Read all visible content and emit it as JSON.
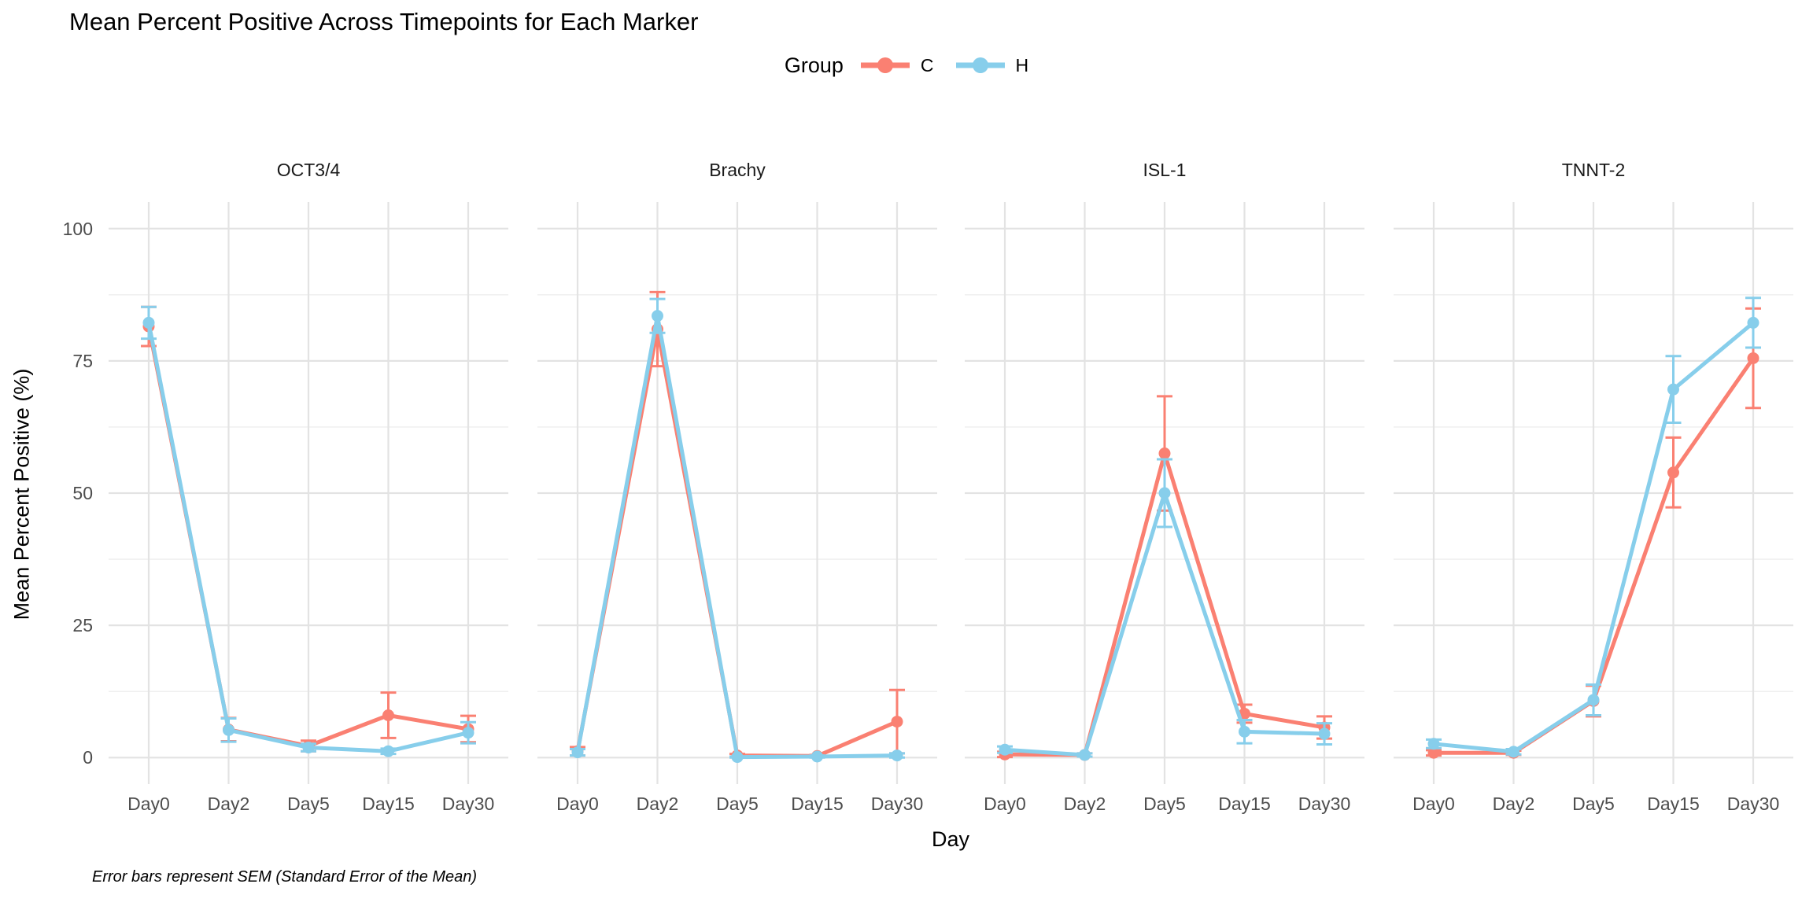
{
  "title": "Mean Percent Positive Across Timepoints for Each Marker",
  "legend": {
    "title": "Group",
    "items": [
      {
        "label": "C",
        "color": "#FA8072"
      },
      {
        "label": "H",
        "color": "#87CEEB"
      }
    ]
  },
  "axes": {
    "x_title": "Day",
    "y_title": "Mean Percent Positive (%)",
    "y_ticks": [
      "100",
      "75",
      "50",
      "25",
      "0"
    ],
    "x_ticks": [
      "Day0",
      "Day2",
      "Day5",
      "Day15",
      "Day30"
    ]
  },
  "caption": "Error bars represent SEM (Standard Error of the Mean)",
  "chart_data": {
    "type": "line",
    "title": "Mean Percent Positive Across Timepoints for Each Marker",
    "xlabel": "Day",
    "ylabel": "Mean Percent Positive (%)",
    "categories": [
      "Day0",
      "Day2",
      "Day5",
      "Day15",
      "Day30"
    ],
    "ylim": [
      0,
      100
    ],
    "y_major_gridlines": [
      0,
      25,
      50,
      75,
      100
    ],
    "y_minor_gridlines": [
      12.5,
      37.5,
      62.5,
      87.5
    ],
    "legend_position": "top",
    "error_bars": "SEM",
    "facets": [
      {
        "label": "OCT3/4",
        "series": [
          {
            "name": "C",
            "color": "#FA8072",
            "means": [
              81.5,
              5.3,
              2.2,
              8,
              5.4
            ],
            "sem": [
              3.7,
              2.2,
              1,
              4.3,
              2.5
            ]
          },
          {
            "name": "H",
            "color": "#87CEEB",
            "means": [
              82.2,
              5.2,
              1.9,
              1.2,
              4.7
            ],
            "sem": [
              3,
              2.2,
              0.7,
              0.5,
              2
            ]
          }
        ]
      },
      {
        "label": "Brachy",
        "series": [
          {
            "name": "C",
            "color": "#FA8072",
            "means": [
              1.2,
              81,
              0.4,
              0.3,
              6.8
            ],
            "sem": [
              0.8,
              7,
              0.3,
              0.2,
              6
            ]
          },
          {
            "name": "H",
            "color": "#87CEEB",
            "means": [
              1,
              83.5,
              0.1,
              0.2,
              0.4
            ],
            "sem": [
              0.6,
              3.2,
              0.1,
              0.2,
              0.4
            ]
          }
        ]
      },
      {
        "label": "ISL-1",
        "series": [
          {
            "name": "C",
            "color": "#FA8072",
            "means": [
              0.6,
              0.5,
              57.5,
              8.3,
              5.7
            ],
            "sem": [
              0.5,
              0.3,
              10.8,
              1.7,
              2.1
            ]
          },
          {
            "name": "H",
            "color": "#87CEEB",
            "means": [
              1.5,
              0.5,
              50,
              4.9,
              4.5
            ],
            "sem": [
              0.6,
              0.3,
              6.4,
              2.2,
              2
            ]
          }
        ]
      },
      {
        "label": "TNNT-2",
        "series": [
          {
            "name": "C",
            "color": "#FA8072",
            "means": [
              0.9,
              0.9,
              10.7,
              53.9,
              75.5
            ],
            "sem": [
              0.5,
              0.4,
              2.9,
              6.6,
              9.4
            ]
          },
          {
            "name": "H",
            "color": "#87CEEB",
            "means": [
              2.6,
              1.1,
              10.9,
              69.6,
              82.2
            ],
            "sem": [
              0.8,
              0.5,
              2.9,
              6.3,
              4.7
            ]
          }
        ]
      }
    ]
  }
}
